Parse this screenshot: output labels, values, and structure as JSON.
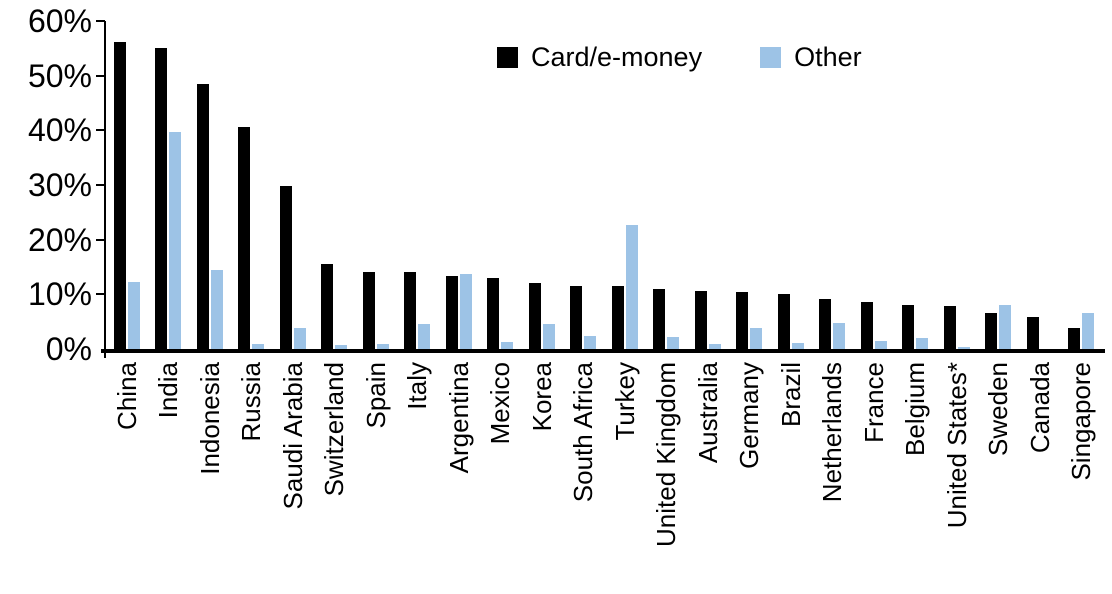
{
  "chart_data": {
    "type": "bar",
    "title": "",
    "xlabel": "",
    "ylabel": "",
    "ylim": [
      0,
      60
    ],
    "ytick_step": 10,
    "ytick_labels": [
      "0%",
      "10%",
      "20%",
      "30%",
      "40%",
      "50%",
      "60%"
    ],
    "grid": false,
    "legend_position": "top-center",
    "background_color": "#FFFFFF",
    "categories": [
      "China",
      "India",
      "Indonesia",
      "Russia",
      "Saudi Arabia",
      "Switzerland",
      "Spain",
      "Italy",
      "Argentina",
      "Mexico",
      "Korea",
      "South Africa",
      "Turkey",
      "United Kingdom",
      "Australia",
      "Germany",
      "Brazil",
      "Netherlands",
      "France",
      "Belgium",
      "United States*",
      "Sweden",
      "Canada",
      "Singapore"
    ],
    "series": [
      {
        "name": "Card/e-money",
        "color": "#000000",
        "values": [
          56.2,
          55.1,
          48.4,
          40.6,
          29.8,
          15.5,
          14.1,
          14.0,
          13.3,
          12.9,
          12.1,
          11.6,
          11.5,
          11.0,
          10.7,
          10.5,
          10.0,
          9.2,
          8.6,
          8.1,
          7.8,
          6.5,
          5.9,
          3.8
        ]
      },
      {
        "name": "Other",
        "color": "#9DC3E6",
        "values": [
          12.3,
          39.7,
          14.4,
          0.9,
          3.9,
          0.8,
          1.0,
          4.6,
          13.7,
          1.2,
          4.6,
          2.3,
          22.6,
          2.2,
          1.0,
          3.9,
          1.1,
          4.8,
          1.5,
          2.0,
          0.3,
          8.0,
          0,
          6.6
        ]
      }
    ]
  }
}
